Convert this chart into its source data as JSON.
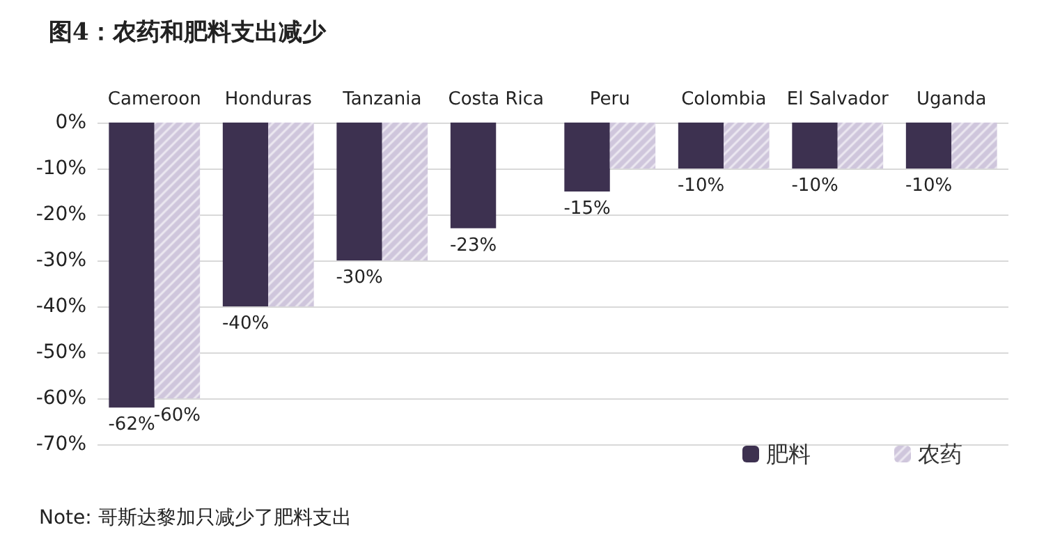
{
  "chart_data": {
    "type": "bar",
    "title": "图4：农药和肥料支出减少",
    "categories": [
      "Cameroon",
      "Honduras",
      "Tanzania",
      "Costa Rica",
      "Peru",
      "Colombia",
      "El Salvador",
      "Uganda"
    ],
    "series": [
      {
        "name": "肥料",
        "color": "#3d3150",
        "values": [
          -62,
          -40,
          -30,
          -23,
          -15,
          -10,
          -10,
          -10
        ],
        "value_labels": [
          "-62%",
          "-40%",
          "-30%",
          "-23%",
          "-15%",
          "-10%",
          "-10%",
          "-10%"
        ]
      },
      {
        "name": "农药",
        "color": "#cfc6dc",
        "values": [
          -60,
          -40,
          -30,
          0,
          -10,
          -10,
          -10,
          -10
        ],
        "value_labels": [
          "-60%",
          null,
          null,
          null,
          null,
          null,
          null,
          null
        ]
      }
    ],
    "ylim": [
      -70,
      0
    ],
    "yticks": [
      {
        "value": -70,
        "label": "-70%"
      },
      {
        "value": -60,
        "label": "-60%"
      },
      {
        "value": -50,
        "label": "-50%"
      },
      {
        "value": -40,
        "label": "-40%"
      },
      {
        "value": -30,
        "label": "-30%"
      },
      {
        "value": -20,
        "label": "-20%"
      },
      {
        "value": -10,
        "label": "-10%"
      },
      {
        "value": 0,
        "label": "0%"
      }
    ],
    "grid": "y",
    "legend": "bottom right",
    "annotations": [
      "Note: 哥斯达黎加只减少了肥料支出"
    ]
  }
}
